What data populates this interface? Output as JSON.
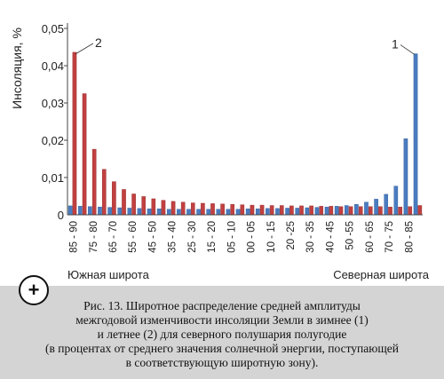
{
  "chart_data": {
    "type": "bar",
    "ylabel": "Инсоляция, %",
    "ylim": [
      0,
      0.05
    ],
    "yticks": [
      "0",
      "0,01",
      "0,02",
      "0,03",
      "0,04",
      "0,05"
    ],
    "tick_values": [
      0,
      0.01,
      0.02,
      0.03,
      0.04,
      0.05
    ],
    "categories": [
      "85 - 90",
      "80 - 85",
      "75 - 80",
      "70 - 75",
      "65 - 70",
      "60 - 65",
      "55 - 60",
      "50 - 55",
      "45 - 50",
      "40 - 45",
      "35 - 40",
      "30 - 35",
      "25 - 30",
      "20 - 25",
      "15 - 20",
      "10 - 15",
      "5 - 10",
      "0 - 5",
      "00 - 05",
      "05 - 10",
      "10 - 15",
      "15 - 20",
      "20 - 25",
      "25 - 30",
      "30 - 35",
      "35 - 40",
      "40 - 45",
      "45 - 50",
      "50 - 55",
      "55 - 60",
      "60 - 65",
      "65 - 70",
      "70 - 75",
      "75 - 80",
      "80 - 85",
      "85 - 90"
    ],
    "tick_labels": [
      "85 - 90",
      "75 - 80",
      "65 - 70",
      "55 - 60",
      "45 - 50",
      "35 - 40",
      "25 - 30",
      "15 - 20",
      "05 - 10",
      "00 - 05",
      "10 - 15",
      "20 -25",
      "30 - 35",
      "40 - 45",
      "50 -55",
      "60 - 65",
      "70 - 75",
      "80 - 85"
    ],
    "series": [
      {
        "name": "1",
        "color": "#4a7cc0",
        "values": [
          0.0024,
          0.0023,
          0.0022,
          0.0021,
          0.002,
          0.0019,
          0.0018,
          0.0017,
          0.0016,
          0.0016,
          0.0015,
          0.0015,
          0.0015,
          0.0015,
          0.0015,
          0.0015,
          0.0015,
          0.0015,
          0.0016,
          0.0016,
          0.0017,
          0.0017,
          0.0018,
          0.0018,
          0.0019,
          0.002,
          0.0021,
          0.0023,
          0.0025,
          0.0028,
          0.0034,
          0.0042,
          0.0055,
          0.0077,
          0.0204,
          0.0432
        ]
      },
      {
        "name": "2",
        "color": "#c24040",
        "values": [
          0.0436,
          0.0325,
          0.0176,
          0.0122,
          0.0089,
          0.0068,
          0.0056,
          0.0049,
          0.0043,
          0.0039,
          0.0036,
          0.0034,
          0.0032,
          0.0031,
          0.003,
          0.0029,
          0.0028,
          0.0027,
          0.0026,
          0.0026,
          0.0025,
          0.0025,
          0.0024,
          0.0024,
          0.0024,
          0.0023,
          0.0023,
          0.0022,
          0.0022,
          0.0022,
          0.0022,
          0.0022,
          0.0021,
          0.0021,
          0.0022,
          0.0025
        ]
      }
    ],
    "annotations": [
      "1",
      "2"
    ],
    "region_labels": {
      "left": "Южная широта",
      "right": "Северная широта"
    }
  },
  "plus_button_label": "+",
  "caption": [
    "Рис. 13. Широтное распределение средней амплитуды",
    "межгодовой изменчивости инсоляции Земли в зимнее (1)",
    "и летнее (2) для северного полушария полугодие",
    "(в процентах от среднего значения солнечной энергии, поступающей",
    "в соответствующую широтную зону)."
  ]
}
